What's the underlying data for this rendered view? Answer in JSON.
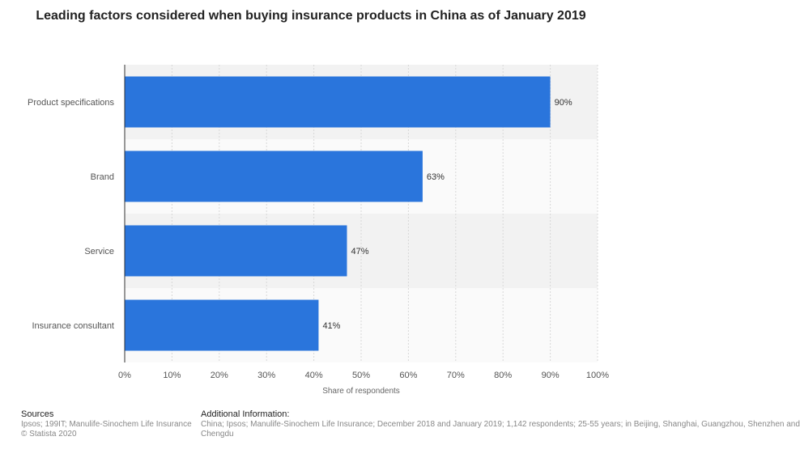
{
  "title": "Leading factors considered when buying insurance products in China as of January 2019",
  "chart_data": {
    "type": "bar",
    "orientation": "horizontal",
    "categories": [
      "Product specifications",
      "Brand",
      "Service",
      "Insurance consultant"
    ],
    "values": [
      90,
      63,
      47,
      41
    ],
    "data_labels": [
      "90%",
      "63%",
      "47%",
      "41%"
    ],
    "xlabel": "Share of respondents",
    "ylabel": "",
    "xlim": [
      0,
      100
    ],
    "x_ticks": [
      "0%",
      "10%",
      "20%",
      "30%",
      "40%",
      "50%",
      "60%",
      "70%",
      "80%",
      "90%",
      "100%"
    ],
    "bar_color": "#2a75dc",
    "grid": true
  },
  "footer": {
    "sources_heading": "Sources",
    "sources_line1": "Ipsos; 199IT; Manulife-Sinochem Life Insurance",
    "sources_line2": "© Statista 2020",
    "additional_heading": "Additional Information:",
    "additional_line1": "China; Ipsos; Manulife-Sinochem Life Insurance; December 2018 and January 2019; 1,142 respondents; 25-55 years; in Beijing, Shanghai, Guangzhou, Shenzhen and",
    "additional_line2": "Chengdu"
  }
}
